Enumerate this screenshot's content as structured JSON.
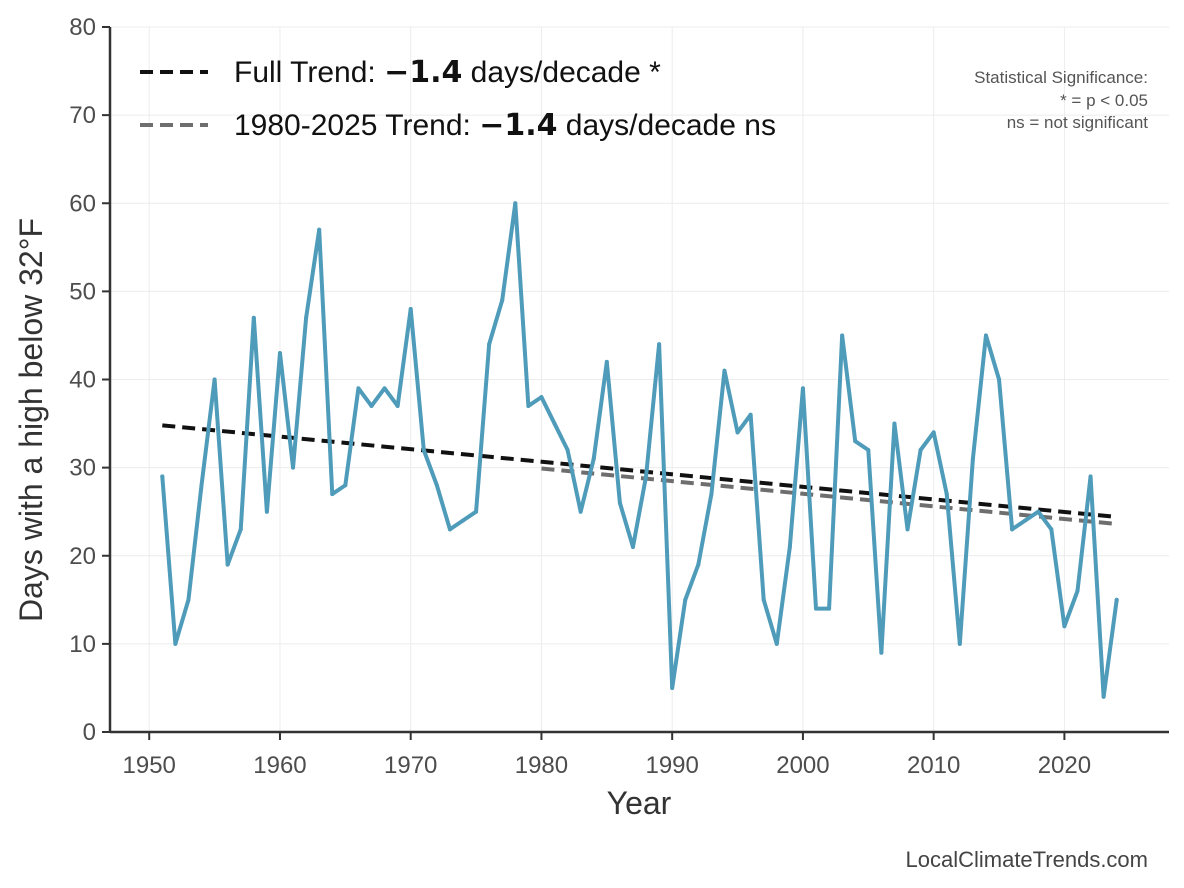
{
  "chart_data": {
    "type": "line",
    "xlabel": "Year",
    "ylabel": "Days with a high below 32°F",
    "xlim": [
      1947,
      2028
    ],
    "ylim": [
      0,
      80
    ],
    "xticks": [
      1950,
      1960,
      1970,
      1980,
      1990,
      2000,
      2010,
      2020
    ],
    "yticks": [
      0,
      10,
      20,
      30,
      40,
      50,
      60,
      70,
      80
    ],
    "grid": true,
    "series": [
      {
        "name": "Days with a high below 32°F",
        "color": "#4f9bba",
        "x": [
          1951,
          1952,
          1953,
          1954,
          1955,
          1956,
          1957,
          1958,
          1959,
          1960,
          1961,
          1962,
          1963,
          1964,
          1965,
          1966,
          1967,
          1968,
          1969,
          1970,
          1971,
          1972,
          1973,
          1974,
          1975,
          1976,
          1977,
          1978,
          1979,
          1980,
          1981,
          1982,
          1983,
          1984,
          1985,
          1986,
          1987,
          1988,
          1989,
          1990,
          1991,
          1992,
          1993,
          1994,
          1995,
          1996,
          1997,
          1998,
          1999,
          2000,
          2001,
          2002,
          2003,
          2004,
          2005,
          2006,
          2007,
          2008,
          2009,
          2010,
          2011,
          2012,
          2013,
          2014,
          2015,
          2016,
          2017,
          2018,
          2019,
          2020,
          2021,
          2022,
          2023,
          2024
        ],
        "values": [
          29,
          10,
          15,
          28,
          40,
          19,
          23,
          47,
          25,
          43,
          30,
          47,
          57,
          27,
          28,
          39,
          37,
          39,
          37,
          48,
          32,
          28,
          23,
          24,
          25,
          44,
          49,
          60,
          37,
          38,
          35,
          32,
          25,
          31,
          42,
          26,
          21,
          29,
          44,
          5,
          15,
          19,
          27,
          41,
          34,
          36,
          15,
          10,
          21,
          39,
          14,
          14,
          45,
          33,
          32,
          9,
          35,
          23,
          32,
          34,
          27,
          10,
          31,
          45,
          40,
          23,
          24,
          25,
          23,
          12,
          16,
          29,
          4,
          15
        ]
      }
    ],
    "trends": [
      {
        "name": "Full Trend",
        "color": "#111111",
        "x": [
          1951,
          2024
        ],
        "y": [
          34.8,
          24.4
        ]
      },
      {
        "name": "1980-2025 Trend",
        "color": "#6e6e6e",
        "x": [
          1980,
          2024
        ],
        "y": [
          29.9,
          23.6
        ]
      }
    ],
    "legend": {
      "placement": "top-left",
      "entries": [
        {
          "prefix": "Full Trend: ",
          "value": "−1.4",
          "suffix": " days/decade *",
          "color": "#111111"
        },
        {
          "prefix": "1980-2025 Trend: ",
          "value": "−1.4",
          "suffix": " days/decade ns",
          "color": "#6e6e6e"
        }
      ]
    },
    "annotations": {
      "significance_title": "Statistical Significance:",
      "significance_lines": [
        "* = p < 0.05",
        "ns = not significant"
      ],
      "credit": "LocalClimateTrends.com"
    }
  }
}
